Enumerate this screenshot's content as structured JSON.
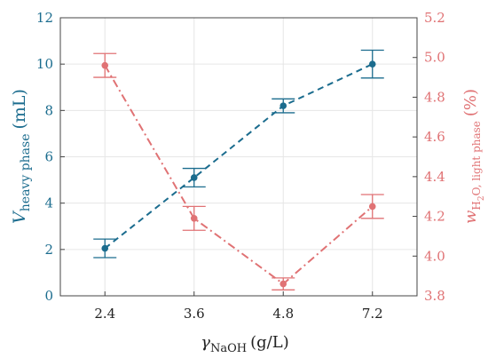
{
  "colors": {
    "left_series": "#1b6c8e",
    "right_series": "#e07274",
    "grid": "#e6e6e6",
    "frame": "#444444",
    "text": "#222222"
  },
  "chart_data": {
    "type": "line",
    "categories": [
      "2.4",
      "3.6",
      "4.8",
      "7.2"
    ],
    "x_axis": {
      "label_main": "γ",
      "label_sub": "NaOH",
      "label_unit": "(g/L)",
      "tick_labels": [
        "2.4",
        "3.6",
        "4.8",
        "7.2"
      ]
    },
    "y_left": {
      "label_main": "V",
      "label_sub": "heavy phase",
      "label_unit": "(mL)",
      "ylim": [
        0,
        12
      ],
      "ticks": [
        "0",
        "2",
        "4",
        "6",
        "8",
        "10",
        "12"
      ]
    },
    "y_right": {
      "label_main": "w",
      "label_sub": "H",
      "label_subsub": "2",
      "label_sub_rest": "O, light phase",
      "label_unit": "(%)",
      "ylim": [
        3.8,
        5.2
      ],
      "ticks": [
        "3.8",
        "4.0",
        "4.2",
        "4.4",
        "4.6",
        "4.8",
        "5.0",
        "5.2"
      ]
    },
    "series": [
      {
        "axis": "left",
        "style": "dashed",
        "values": [
          2.05,
          5.1,
          8.2,
          10.0
        ],
        "errors": [
          0.4,
          0.4,
          0.3,
          0.6
        ]
      },
      {
        "axis": "right",
        "style": "dash-dot",
        "values": [
          4.96,
          4.19,
          3.86,
          4.25
        ],
        "errors": [
          0.06,
          0.06,
          0.03,
          0.06
        ]
      }
    ],
    "grid": true
  }
}
